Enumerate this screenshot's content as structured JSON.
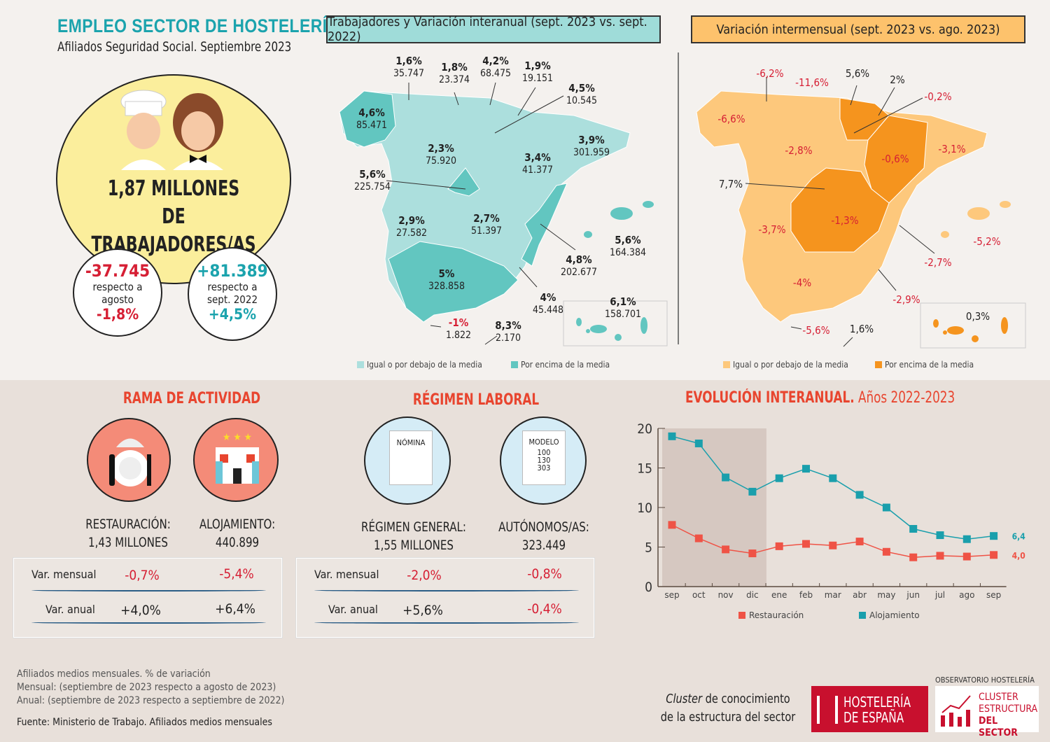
{
  "header": {
    "title": "EMPLEO SECTOR DE HOSTELERÍA",
    "subtitle": "Afiliados Seguridad Social. Septiembre 2023"
  },
  "summary": {
    "total_line1": "1,87 MILLONES",
    "total_line2": "DE TRABAJADORES/AS",
    "monthly": {
      "value": "-37.745",
      "text1": "respecto a",
      "text2": "agosto",
      "pct": "-1,8%"
    },
    "annual": {
      "value": "+81.389",
      "text1": "respecto a",
      "text2": "sept. 2022",
      "pct": "+4,5%"
    }
  },
  "map_annual": {
    "title": "Trabajadores y Variación interanual (sept. 2023 vs. sept. 2022)",
    "colors": {
      "below": "#acdfdd",
      "above": "#62c6c0"
    },
    "regions": [
      {
        "name": "Galicia",
        "pct": "4,6%",
        "value": "85.471"
      },
      {
        "name": "Asturias",
        "pct": "1,6%",
        "value": "35.747"
      },
      {
        "name": "Cantabria",
        "pct": "1,8%",
        "value": "23.374"
      },
      {
        "name": "País Vasco",
        "pct": "4,2%",
        "value": "68.475"
      },
      {
        "name": "Navarra",
        "pct": "1,9%",
        "value": "19.151"
      },
      {
        "name": "La Rioja",
        "pct": "4,5%",
        "value": "10.545"
      },
      {
        "name": "Cataluña",
        "pct": "3,9%",
        "value": "301.959"
      },
      {
        "name": "Castilla y León",
        "pct": "2,3%",
        "value": "75.920"
      },
      {
        "name": "Aragón",
        "pct": "3,4%",
        "value": "41.377"
      },
      {
        "name": "Madrid",
        "pct": "5,6%",
        "value": "225.754"
      },
      {
        "name": "Extremadura",
        "pct": "2,9%",
        "value": "27.582"
      },
      {
        "name": "Castilla-La Mancha",
        "pct": "2,7%",
        "value": "51.397"
      },
      {
        "name": "Baleares",
        "pct": "5,6%",
        "value": "164.384"
      },
      {
        "name": "C. Valenciana",
        "pct": "4,8%",
        "value": "202.677"
      },
      {
        "name": "Andalucía",
        "pct": "5%",
        "value": "328.858"
      },
      {
        "name": "Murcia",
        "pct": "4%",
        "value": "45.448"
      },
      {
        "name": "Canarias",
        "pct": "6,1%",
        "value": "158.701"
      },
      {
        "name": "Ceuta",
        "pct": "-1%",
        "value": "1.822"
      },
      {
        "name": "Melilla",
        "pct": "8,3%",
        "value": "2.170"
      }
    ],
    "legend": [
      "Igual o por debajo de la media",
      "Por encima de la media"
    ]
  },
  "map_monthly": {
    "title": "Variación intermensual (sept. 2023 vs. ago. 2023)",
    "colors": {
      "below": "#fdc87c",
      "above": "#f5941e"
    },
    "regions": [
      {
        "name": "Asturias",
        "pct": "-6,2%"
      },
      {
        "name": "Cantabria",
        "pct": "-11,6%"
      },
      {
        "name": "País Vasco",
        "pct": "5,6%"
      },
      {
        "name": "Navarra",
        "pct": "2%"
      },
      {
        "name": "La Rioja",
        "pct": "-0,2%"
      },
      {
        "name": "Galicia",
        "pct": "-6,6%"
      },
      {
        "name": "Castilla y León",
        "pct": "-2,8%"
      },
      {
        "name": "Aragón",
        "pct": "-0,6%"
      },
      {
        "name": "Cataluña",
        "pct": "-3,1%"
      },
      {
        "name": "Madrid",
        "pct": "7,7%"
      },
      {
        "name": "Extremadura",
        "pct": "-3,7%"
      },
      {
        "name": "Castilla-La Mancha",
        "pct": "-1,3%"
      },
      {
        "name": "Baleares",
        "pct": "-5,2%"
      },
      {
        "name": "C. Valenciana",
        "pct": "-2,7%"
      },
      {
        "name": "Andalucía",
        "pct": "-4%"
      },
      {
        "name": "Murcia",
        "pct": "-2,9%"
      },
      {
        "name": "Ceuta",
        "pct": "-5,6%"
      },
      {
        "name": "Melilla",
        "pct": "1,6%"
      },
      {
        "name": "Canarias",
        "pct": "0,3%"
      }
    ],
    "legend": [
      "Igual o por debajo de la media",
      "Por encima de la media"
    ]
  },
  "rama": {
    "title": "RAMA DE ACTIVIDAD",
    "restauracion": {
      "label": "RESTAURACIÓN:",
      "value": "1,43 MILLONES",
      "mensual": "-0,7%",
      "anual": "+4,0%"
    },
    "alojamiento": {
      "label": "ALOJAMIENTO:",
      "value": "440.899",
      "mensual": "-5,4%",
      "anual": "+6,4%"
    },
    "row_mensual": "Var. mensual",
    "row_anual": "Var. anual"
  },
  "regimen": {
    "title": "RÉGIMEN LABORAL",
    "nomina_doc": "NÓMINA",
    "modelo_doc": "MODELO",
    "modelo_nums": [
      "100",
      "130",
      "303"
    ],
    "general": {
      "label": "RÉGIMEN GENERAL:",
      "value": "1,55 MILLONES",
      "mensual": "-2,0%",
      "anual": "+5,6%"
    },
    "autonomos": {
      "label": "AUTÓNOMOS/AS:",
      "value": "323.449",
      "mensual": "-0,8%",
      "anual": "-0,4%"
    },
    "row_mensual": "Var. mensual",
    "row_anual": "Var. anual"
  },
  "chart_data": {
    "type": "line",
    "title": "EVOLUCIÓN INTERANUAL.",
    "subtitle": "Años 2022-2023",
    "categories": [
      "sep",
      "oct",
      "nov",
      "dic",
      "ene",
      "feb",
      "mar",
      "abr",
      "may",
      "jun",
      "jul",
      "ago",
      "sep"
    ],
    "ylim": [
      0,
      20
    ],
    "yticks": [
      "0",
      "5",
      "10",
      "15",
      "20"
    ],
    "shaded_range": [
      "sep",
      "dic"
    ],
    "legend": "bottom",
    "series": [
      {
        "name": "Restauración",
        "color": "#ef5346",
        "values": [
          7.8,
          6.1,
          4.7,
          4.2,
          5.1,
          5.4,
          5.2,
          5.7,
          4.4,
          3.7,
          3.9,
          3.8,
          4.0
        ],
        "end_label": "4,0"
      },
      {
        "name": "Alojamiento",
        "color": "#1a9fac",
        "values": [
          19.0,
          18.1,
          13.8,
          12.0,
          13.7,
          14.9,
          13.7,
          11.6,
          10.0,
          7.3,
          6.5,
          6.0,
          6.4
        ],
        "end_label": "6,4"
      }
    ]
  },
  "notes": {
    "line1": "Afiliados medios mensuales. % de variación",
    "line2": "Mensual: (septiembre de 2023 respecto a agosto de 2023)",
    "line3": "Anual: (septiembre de 2023 respecto a septiembre de 2022)",
    "source": "Fuente: Ministerio de Trabajo. Afiliados medios mensuales"
  },
  "footer": {
    "cluster_em": "Cluster",
    "cluster_rest": " de conocimiento",
    "cluster_line2": "de la estructura del sector",
    "logo1_line1": "HOSTELERÍA",
    "logo1_line2": "DE ESPAÑA",
    "logo2_top": "OBSERVATORIO HOSTELERÍA",
    "logo2_l1": "CLUSTER",
    "logo2_l2": "ESTRUCTURA",
    "logo2_l3": "DEL SECTOR"
  }
}
